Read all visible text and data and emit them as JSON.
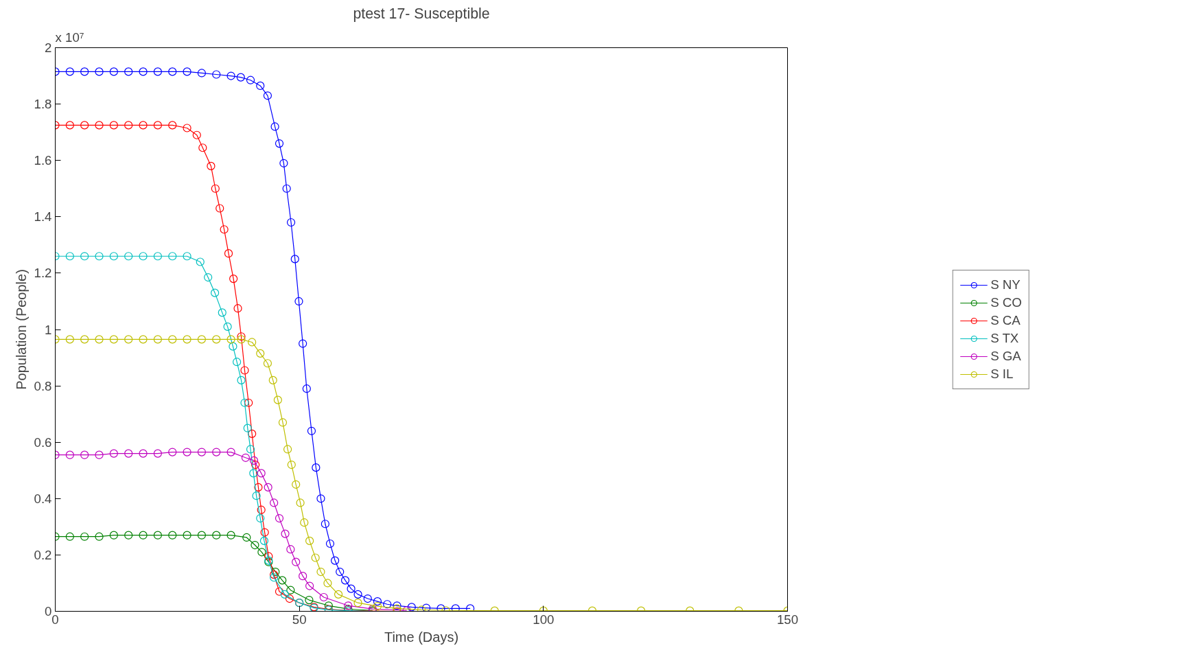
{
  "chart_data": {
    "type": "line",
    "title": "ptest 17- Susceptible",
    "xlabel": "Time (Days)",
    "ylabel": "Population (People)",
    "annotations": [
      "x 10⁷"
    ],
    "xlim": [
      0,
      150
    ],
    "xticks": [
      0,
      50,
      100,
      150
    ],
    "ylim": [
      0,
      2
    ],
    "yticks": [
      0,
      0.2,
      0.4,
      0.6,
      0.8,
      1,
      1.2,
      1.4,
      1.6,
      1.8,
      2
    ],
    "grid": false,
    "legend": "right",
    "marker": "circle",
    "line_style": "solid",
    "series": [
      {
        "name": "S NY",
        "color": "#0000ff",
        "x": [
          0,
          3,
          6,
          9,
          12,
          15,
          18,
          21,
          24,
          27,
          30,
          33,
          36,
          38,
          40,
          42,
          43.5,
          45,
          45.9,
          46.8,
          47.4,
          48.3,
          49.1,
          49.9,
          50.7,
          51.5,
          52.5,
          53.4,
          54.4,
          55.3,
          56.3,
          57.3,
          58.3,
          59.4,
          60.6,
          62,
          64,
          66,
          68,
          70,
          73,
          76,
          79,
          82,
          85
        ],
        "values": [
          1.915,
          1.915,
          1.915,
          1.915,
          1.915,
          1.915,
          1.915,
          1.915,
          1.915,
          1.915,
          1.91,
          1.905,
          1.9,
          1.895,
          1.885,
          1.865,
          1.83,
          1.72,
          1.66,
          1.59,
          1.5,
          1.38,
          1.25,
          1.1,
          0.95,
          0.79,
          0.64,
          0.51,
          0.4,
          0.31,
          0.24,
          0.18,
          0.14,
          0.11,
          0.08,
          0.06,
          0.045,
          0.035,
          0.025,
          0.02,
          0.015,
          0.012,
          0.01,
          0.01,
          0.01
        ]
      },
      {
        "name": "S CO",
        "color": "#008000",
        "x": [
          0,
          3,
          6,
          9,
          12,
          15,
          18,
          21,
          24,
          27,
          30,
          33,
          36,
          39.2,
          40.9,
          42.3,
          43.7,
          45.1,
          46.5,
          48.2,
          52,
          56,
          60,
          65
        ],
        "values": [
          0.265,
          0.265,
          0.265,
          0.265,
          0.27,
          0.27,
          0.27,
          0.27,
          0.27,
          0.27,
          0.27,
          0.27,
          0.27,
          0.262,
          0.235,
          0.21,
          0.175,
          0.14,
          0.11,
          0.075,
          0.04,
          0.02,
          0.008,
          0.003
        ]
      },
      {
        "name": "S CA",
        "color": "#ff0000",
        "x": [
          0,
          3,
          6,
          9,
          12,
          15,
          18,
          21,
          24,
          27,
          29,
          30.2,
          31.9,
          32.8,
          33.7,
          34.6,
          35.5,
          36.5,
          37.4,
          38.1,
          38.8,
          39.6,
          40.3,
          41,
          41.6,
          42.2,
          42.9,
          43.7,
          44.8,
          45.9,
          48,
          50,
          53,
          56,
          60,
          65,
          70
        ],
        "values": [
          1.725,
          1.725,
          1.725,
          1.725,
          1.725,
          1.725,
          1.725,
          1.725,
          1.725,
          1.715,
          1.69,
          1.645,
          1.58,
          1.5,
          1.43,
          1.355,
          1.27,
          1.18,
          1.075,
          0.975,
          0.855,
          0.74,
          0.63,
          0.52,
          0.44,
          0.36,
          0.28,
          0.195,
          0.13,
          0.07,
          0.045,
          0.03,
          0.015,
          0.007,
          0.003,
          0.001,
          0
        ]
      },
      {
        "name": "S TX",
        "color": "#00bfbf",
        "x": [
          0,
          3,
          6,
          9,
          12,
          15,
          18,
          21,
          24,
          27,
          29.7,
          31.3,
          32.7,
          34.2,
          35.3,
          36.4,
          37.2,
          38.1,
          38.8,
          39.4,
          40,
          40.6,
          41.2,
          42,
          42.8,
          43.7,
          44.8,
          47,
          50,
          53,
          56,
          60,
          65
        ],
        "values": [
          1.26,
          1.26,
          1.26,
          1.26,
          1.26,
          1.26,
          1.26,
          1.26,
          1.26,
          1.26,
          1.24,
          1.185,
          1.13,
          1.06,
          1.01,
          0.94,
          0.885,
          0.82,
          0.74,
          0.65,
          0.575,
          0.49,
          0.41,
          0.33,
          0.25,
          0.18,
          0.12,
          0.06,
          0.03,
          0.012,
          0.005,
          0.002,
          0
        ]
      },
      {
        "name": "S GA",
        "color": "#bf00bf",
        "x": [
          0,
          3,
          6,
          9,
          12,
          15,
          18,
          21,
          24,
          27,
          30,
          33,
          36,
          39,
          40.7,
          42.2,
          43.6,
          44.8,
          45.9,
          47.1,
          48.2,
          49.3,
          50.7,
          52.1,
          55,
          60,
          65,
          72
        ],
        "values": [
          0.555,
          0.555,
          0.555,
          0.555,
          0.56,
          0.56,
          0.56,
          0.56,
          0.565,
          0.565,
          0.565,
          0.565,
          0.565,
          0.545,
          0.535,
          0.49,
          0.44,
          0.385,
          0.33,
          0.275,
          0.22,
          0.175,
          0.125,
          0.09,
          0.05,
          0.02,
          0.008,
          0.003
        ]
      },
      {
        "name": "S IL",
        "color": "#bfbf00",
        "x": [
          0,
          3,
          6,
          9,
          12,
          15,
          18,
          21,
          24,
          27,
          30,
          33,
          36,
          38.1,
          40.3,
          42,
          43.5,
          44.6,
          45.6,
          46.6,
          47.6,
          48.4,
          49.3,
          50.2,
          51,
          52.1,
          53.3,
          54.4,
          55.8,
          58,
          62,
          66,
          70,
          75,
          80,
          90,
          100,
          110,
          120,
          130,
          140,
          150
        ],
        "values": [
          0.965,
          0.965,
          0.965,
          0.965,
          0.965,
          0.965,
          0.965,
          0.965,
          0.965,
          0.965,
          0.965,
          0.965,
          0.965,
          0.965,
          0.955,
          0.915,
          0.88,
          0.82,
          0.75,
          0.67,
          0.575,
          0.52,
          0.45,
          0.385,
          0.315,
          0.25,
          0.19,
          0.14,
          0.1,
          0.06,
          0.03,
          0.018,
          0.01,
          0.005,
          0.003,
          0.002,
          0.002,
          0.002,
          0.002,
          0.002,
          0.002,
          0.002
        ]
      }
    ]
  }
}
